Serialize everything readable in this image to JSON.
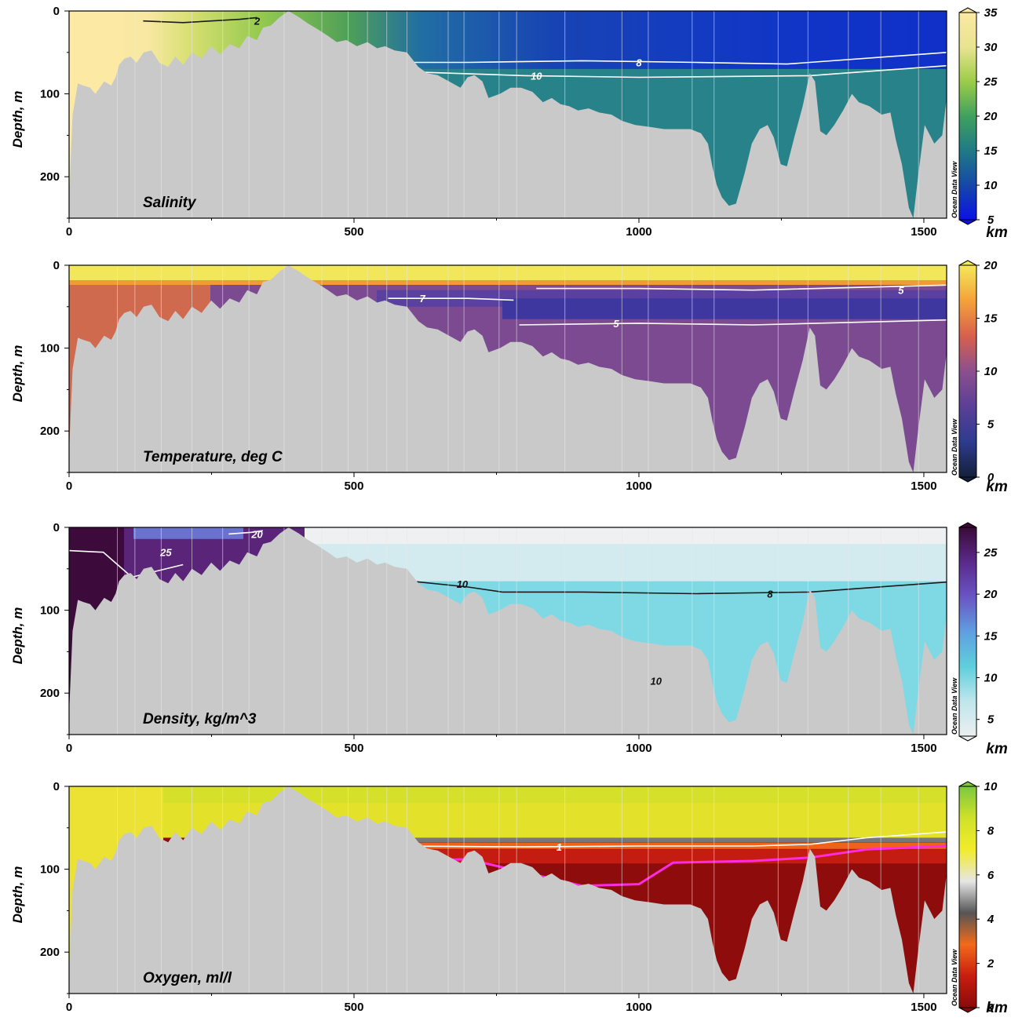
{
  "chart_data": [
    {
      "type": "heatmap",
      "title": "Salinity",
      "ylabel": "Depth, m",
      "xlabel": "km",
      "xlim": [
        0,
        1540
      ],
      "ylim": [
        250,
        0
      ],
      "x_ticks": [
        "0",
        "500",
        "1000",
        "1500"
      ],
      "y_ticks": [
        "0",
        "100",
        "200"
      ],
      "colorbar": {
        "ticks": [
          "35",
          "30",
          "25",
          "20",
          "15",
          "10",
          "5"
        ],
        "range": [
          5,
          35
        ],
        "stops": [
          "#0b12e6",
          "#1548a8",
          "#1f7a86",
          "#3fa15e",
          "#9ccc48",
          "#e8e490",
          "#fbe9a4"
        ]
      },
      "contours": [
        {
          "value": "2",
          "depth_m": 12,
          "kind": "dark"
        },
        {
          "value": "8",
          "depth_m": 62,
          "kind": "light"
        },
        {
          "value": "10",
          "depth_m": 78,
          "kind": "light"
        }
      ],
      "watermark": "Ocean Data View"
    },
    {
      "type": "heatmap",
      "title": "Temperature, deg C",
      "ylabel": "Depth, m",
      "xlabel": "km",
      "xlim": [
        0,
        1540
      ],
      "ylim": [
        250,
        0
      ],
      "x_ticks": [
        "0",
        "500",
        "1000",
        "1500"
      ],
      "y_ticks": [
        "0",
        "100",
        "200"
      ],
      "colorbar": {
        "ticks": [
          "20",
          "15",
          "10",
          "5",
          "0"
        ],
        "range": [
          0,
          20
        ],
        "stops": [
          "#13203a",
          "#2e3b8f",
          "#5b3f97",
          "#8c4f8e",
          "#d8604d",
          "#f4a23a",
          "#f5e85a"
        ]
      },
      "contours": [
        {
          "value": "7",
          "depth_m": 40,
          "kind": "light"
        },
        {
          "value": "5",
          "depth_m": 30,
          "kind": "light"
        },
        {
          "value": "5",
          "depth_m": 70,
          "kind": "light"
        }
      ],
      "watermark": "Ocean Data View"
    },
    {
      "type": "heatmap",
      "title": "Density, kg/m^3",
      "ylabel": "Depth, m",
      "xlabel": "km",
      "xlim": [
        0,
        1540
      ],
      "ylim": [
        250,
        0
      ],
      "x_ticks": [
        "0",
        "500",
        "1000",
        "1500"
      ],
      "y_ticks": [
        "0",
        "100",
        "200"
      ],
      "colorbar": {
        "ticks": [
          "25",
          "20",
          "15",
          "10",
          "5"
        ],
        "range": [
          3,
          28
        ],
        "stops": [
          "#eceff0",
          "#bfe6ec",
          "#5fcfdc",
          "#5f9fe0",
          "#6a55c4",
          "#5a2a8c",
          "#3a0b36"
        ]
      },
      "contours": [
        {
          "value": "25",
          "depth_m": 30,
          "kind": "light"
        },
        {
          "value": "20",
          "depth_m": 10,
          "kind": "light"
        },
        {
          "value": "10",
          "depth_m": 65,
          "kind": "dark"
        },
        {
          "value": "8",
          "depth_m": 78,
          "kind": "dark"
        },
        {
          "value": "10",
          "depth_m": 185,
          "kind": "dark"
        }
      ],
      "watermark": "Ocean Data View"
    },
    {
      "type": "heatmap",
      "title": "Oxygen, ml/l",
      "ylabel": "Depth, m",
      "xlabel": "km",
      "xlim": [
        0,
        1540
      ],
      "ylim": [
        250,
        0
      ],
      "x_ticks": [
        "0",
        "500",
        "1000",
        "1500"
      ],
      "y_ticks": [
        "0",
        "100",
        "200"
      ],
      "colorbar": {
        "ticks": [
          "10",
          "8",
          "6",
          "4",
          "2",
          "0"
        ],
        "range": [
          0,
          10
        ],
        "stops": [
          "#8a0a0a",
          "#c81e0e",
          "#f26a1a",
          "#555555",
          "#e6e6e6",
          "#f2ec2a",
          "#cfe12a",
          "#7cc83e"
        ]
      },
      "contours": [
        {
          "value": "1",
          "depth_m": 70,
          "kind": "light"
        }
      ],
      "watermark": "Ocean Data View"
    }
  ]
}
